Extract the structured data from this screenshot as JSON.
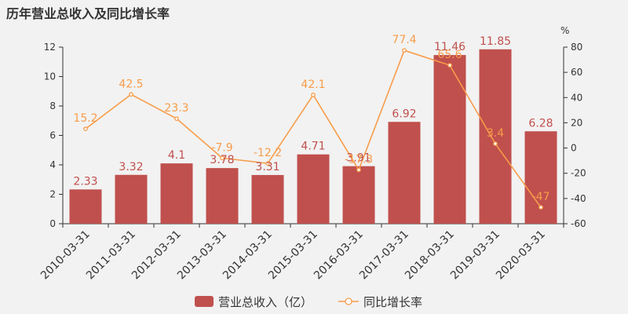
{
  "title": "历年营业总收入及同比增长率",
  "colors": {
    "bar": "#c0504d",
    "line": "#f79d4b",
    "axis": "#333333",
    "background": "#f2f2f2"
  },
  "chart_data": {
    "type": "bar",
    "categories": [
      "2010-03-31",
      "2011-03-31",
      "2012-03-31",
      "2013-03-31",
      "2014-03-31",
      "2015-03-31",
      "2016-03-31",
      "2017-03-31",
      "2018-03-31",
      "2019-03-31",
      "2020-03-31"
    ],
    "series": [
      {
        "name": "营业总收入（亿）",
        "type": "bar",
        "axis": "left",
        "values": [
          2.33,
          3.32,
          4.1,
          3.78,
          3.31,
          4.71,
          3.91,
          6.92,
          11.46,
          11.85,
          6.28
        ]
      },
      {
        "name": "同比增长率",
        "type": "line",
        "axis": "right",
        "values": [
          15.2,
          42.5,
          23.3,
          -7.9,
          -12.2,
          42.1,
          -17.3,
          77.4,
          65.6,
          3.4,
          -47
        ]
      }
    ],
    "value_labels": {
      "bar": [
        "2.33",
        "3.32",
        "4.1",
        "3.78",
        "3.31",
        "4.71",
        "3.91",
        "6.92",
        "11.46",
        "11.85",
        "6.28"
      ],
      "line": [
        "15.2",
        "42.5",
        "23.3",
        "-7.9",
        "-12.2",
        "42.1",
        "-17.3",
        "77.4",
        "65.6",
        "3.4",
        "-47"
      ]
    },
    "y_left": {
      "range": [
        0,
        12
      ],
      "ticks": [
        "0",
        "2",
        "4",
        "6",
        "8",
        "10",
        "12"
      ]
    },
    "y_right": {
      "range": [
        -60,
        80
      ],
      "ticks": [
        "-60",
        "-40",
        "-20",
        "0",
        "20",
        "40",
        "60",
        "80"
      ],
      "unit": "%"
    },
    "grid": false,
    "legend": {
      "placement": "bottom-center"
    }
  }
}
